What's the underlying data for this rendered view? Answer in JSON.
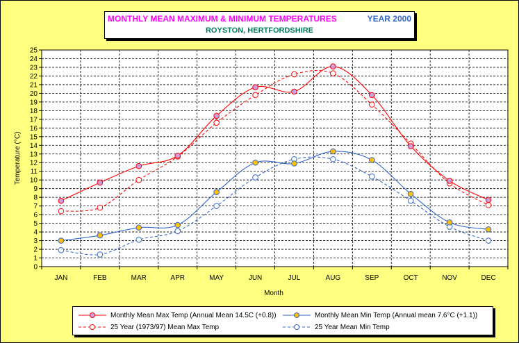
{
  "title": {
    "main": "MONTHLY MEAN MAXIMUM & MINIMUM TEMPERATURES",
    "year": "YEAR 2000",
    "subtitle": "ROYSTON, HERTFORDSHIRE"
  },
  "colors": {
    "background": "#ffff80",
    "max_line": "#ff0000",
    "min_line": "#3366cc",
    "max_marker_fill": "#c8a0e0",
    "min_marker_fill": "#ffc000",
    "axis_label": "#ff6600"
  },
  "chart_data": {
    "type": "line",
    "xlabel": "Month",
    "ylabel": "Temperature (°C)",
    "ylim": [
      0,
      25
    ],
    "yticks": [
      0,
      1,
      2,
      3,
      4,
      5,
      6,
      7,
      8,
      9,
      10,
      11,
      12,
      13,
      14,
      15,
      16,
      17,
      18,
      19,
      20,
      21,
      22,
      23,
      24,
      25
    ],
    "grid": true,
    "legend_position": "bottom",
    "categories": [
      "JAN",
      "FEB",
      "MAR",
      "APR",
      "MAY",
      "JUN",
      "JUL",
      "AUG",
      "SEP",
      "OCT",
      "NOV",
      "DEC"
    ],
    "series": [
      {
        "name": "Monthly Mean Max Temp (Annual Mean 14.5C (+0.8))",
        "color": "#ff0000",
        "style": "solid",
        "marker": "circle",
        "marker_fill": "#c8a0e0",
        "values": [
          7.6,
          9.7,
          11.6,
          12.8,
          17.4,
          20.7,
          20.2,
          23.1,
          19.8,
          13.9,
          9.9,
          7.7
        ]
      },
      {
        "name": "Monthly Mean Min Temp (Annual mean 7.6°C (+1.1))",
        "color": "#3366cc",
        "style": "solid",
        "marker": "circle",
        "marker_fill": "#ffc000",
        "values": [
          3.0,
          3.6,
          4.5,
          4.8,
          8.6,
          12.0,
          11.9,
          13.3,
          12.3,
          8.4,
          5.1,
          4.3
        ]
      },
      {
        "name": "25 Year (1973/97) Mean Max Temp",
        "color": "#ff0000",
        "style": "dashed",
        "marker": "circle",
        "marker_fill": "#ffffff",
        "values": [
          6.4,
          6.8,
          10.0,
          12.7,
          16.6,
          19.8,
          22.2,
          22.3,
          18.7,
          14.2,
          9.6,
          7.1
        ]
      },
      {
        "name": "25 Year Mean Min Temp",
        "color": "#3366cc",
        "style": "dashed",
        "marker": "circle",
        "marker_fill": "#ffffff",
        "values": [
          1.9,
          1.4,
          3.1,
          4.1,
          7.0,
          10.3,
          12.4,
          12.4,
          10.4,
          7.6,
          4.6,
          3.0
        ]
      }
    ]
  }
}
